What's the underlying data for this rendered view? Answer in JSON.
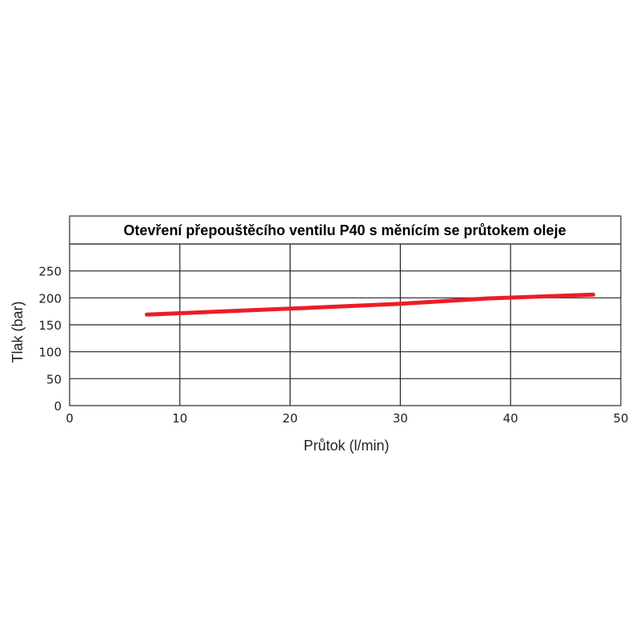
{
  "chart_data": {
    "type": "line",
    "title": "Otevření přepouštěcího ventilu P40 s měnícím se průtokem oleje",
    "xlabel": "Průtok (l/min)",
    "ylabel": "Tlak (bar)",
    "xlim": [
      0,
      50
    ],
    "ylim": [
      0,
      300
    ],
    "xticks": [
      "0",
      "10",
      "20",
      "30",
      "40",
      "50"
    ],
    "yticks": [
      "0",
      "50",
      "100",
      "150",
      "200",
      "250"
    ],
    "grid": true,
    "series": [
      {
        "color": "#ee1c25",
        "x": [
          7,
          20,
          30,
          38,
          47.5
        ],
        "y": [
          169,
          180,
          189,
          199,
          206
        ]
      }
    ]
  }
}
